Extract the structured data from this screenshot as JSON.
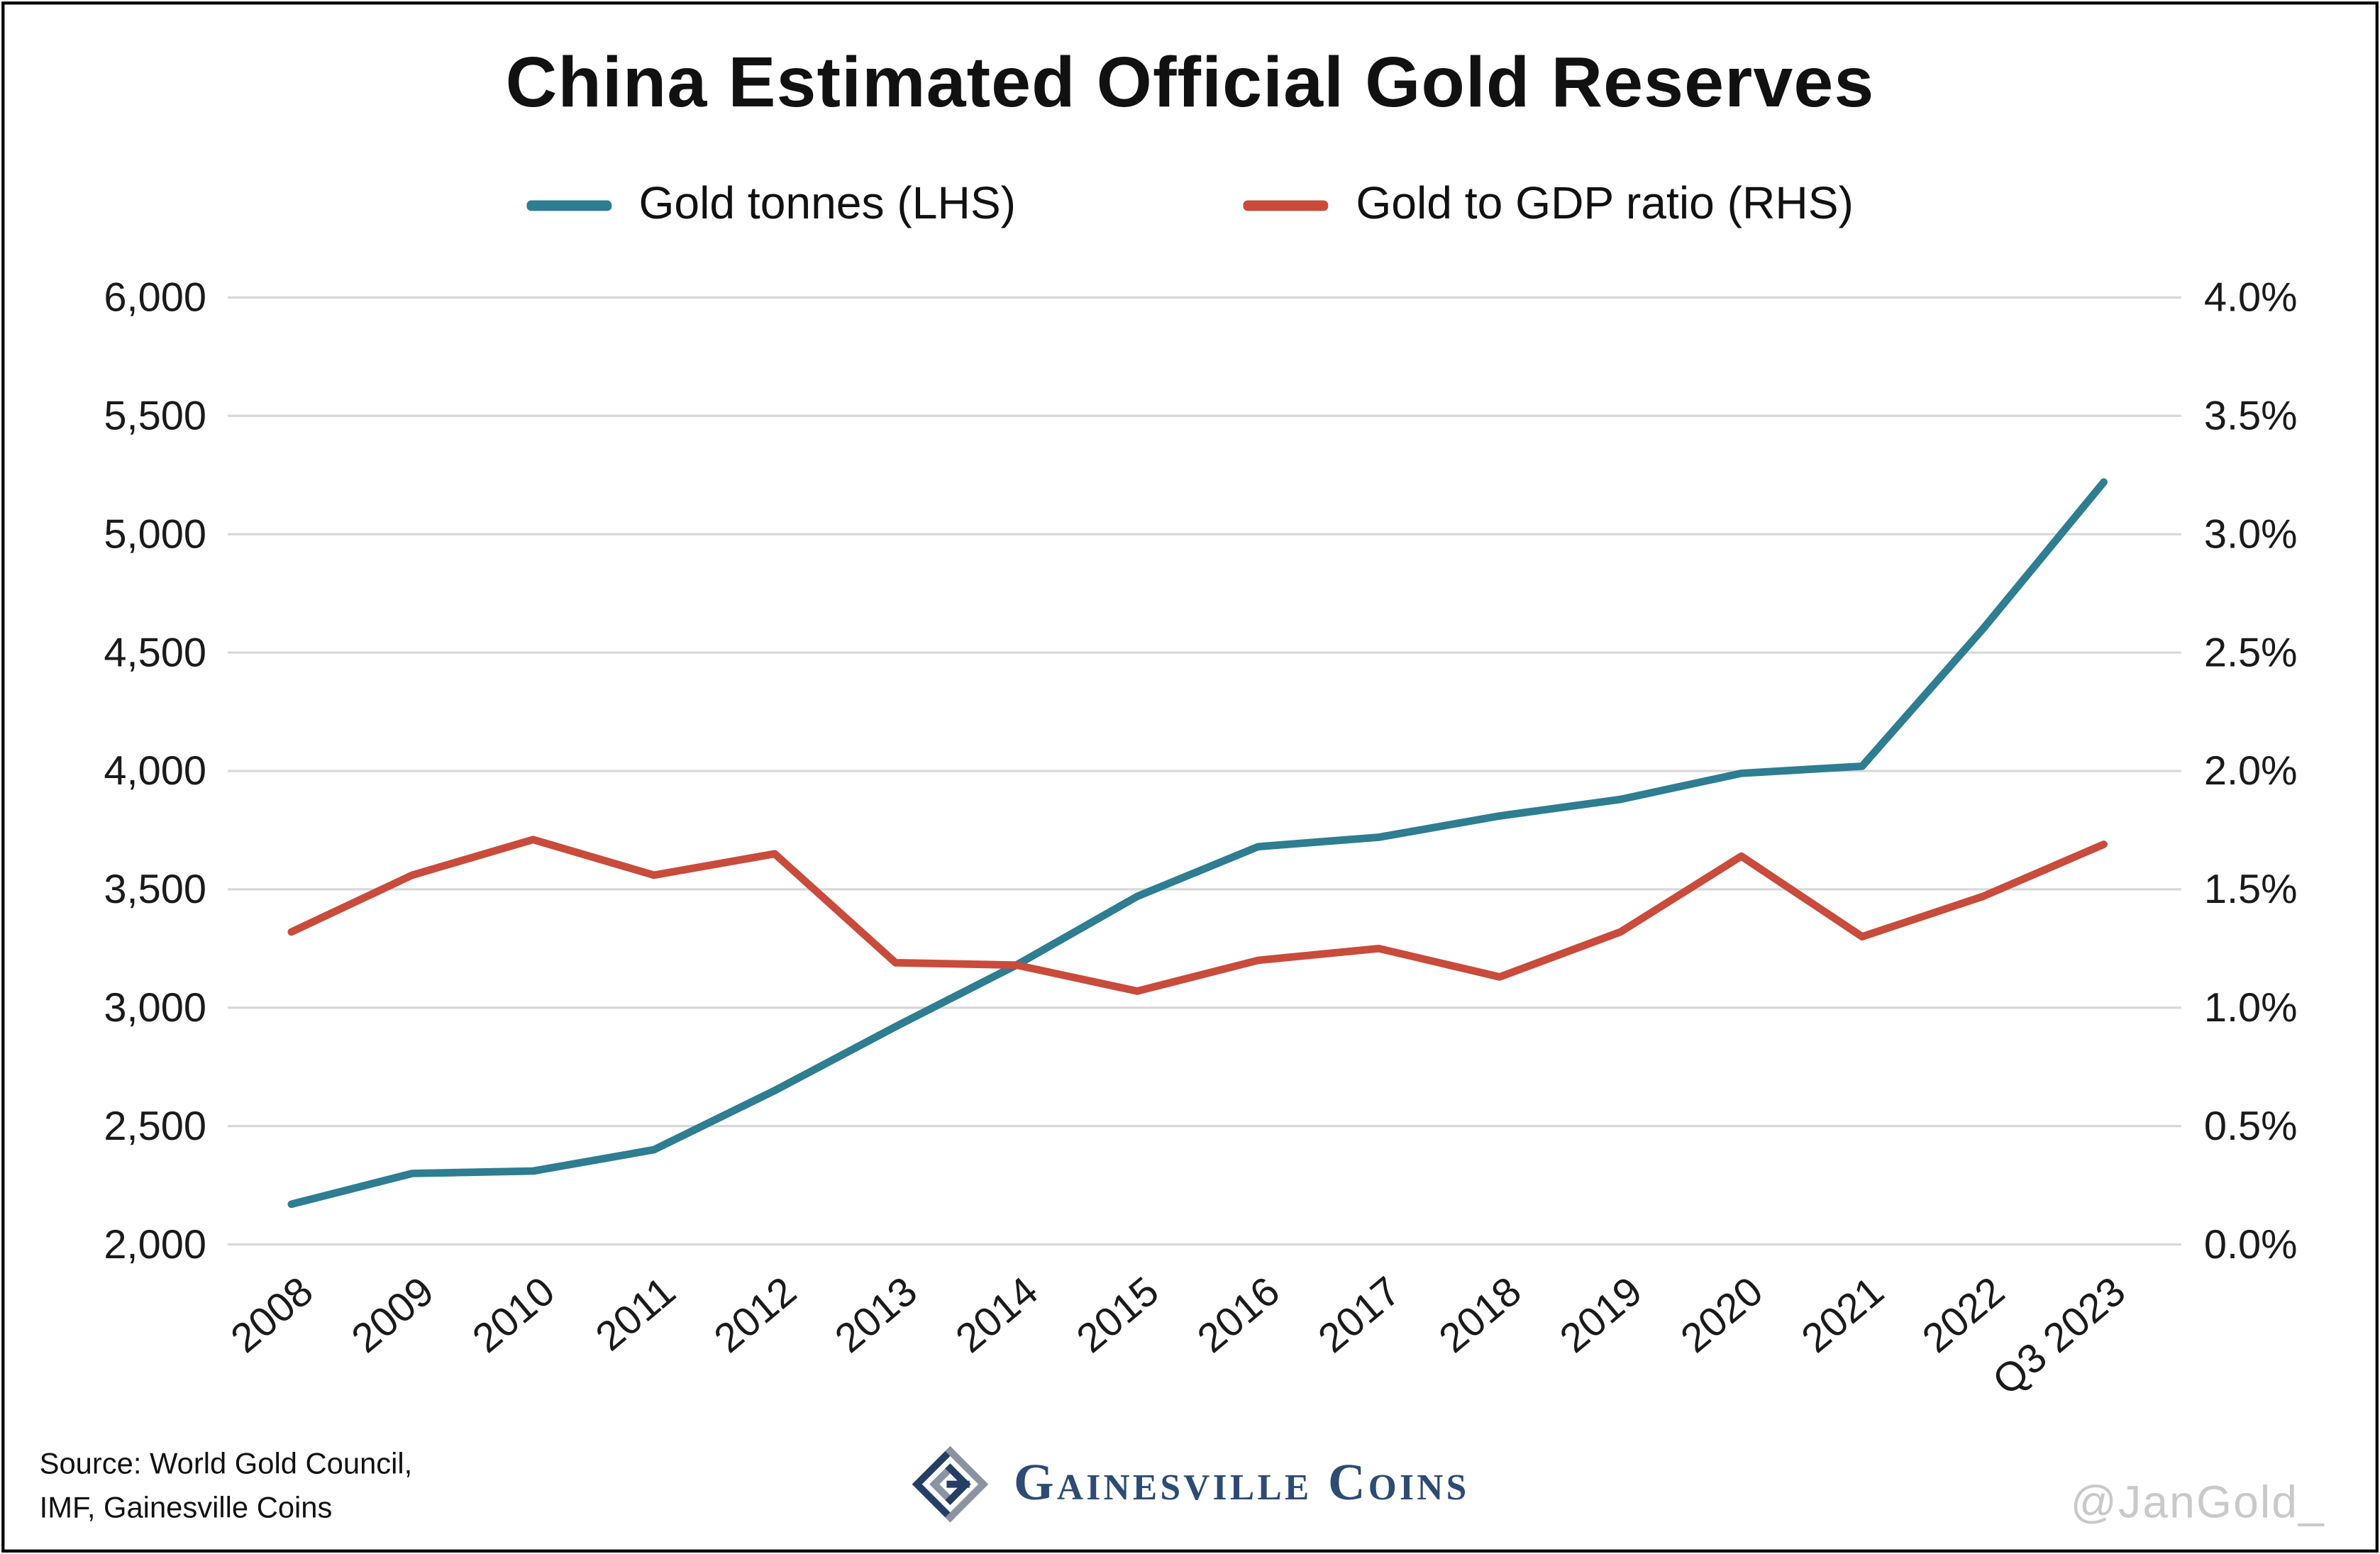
{
  "title": "China Estimated Official Gold Reserves",
  "legend": [
    {
      "label": "Gold tonnes (LHS)",
      "color": "#2e7d91"
    },
    {
      "label": "Gold to GDP ratio (RHS)",
      "color": "#c94b3b"
    }
  ],
  "chart_data": {
    "type": "line",
    "title": "China Estimated Official Gold Reserves",
    "categories": [
      "2008",
      "2009",
      "2010",
      "2011",
      "2012",
      "2013",
      "2014",
      "2015",
      "2016",
      "2017",
      "2018",
      "2019",
      "2020",
      "2021",
      "2022",
      "Q3 2023"
    ],
    "series": [
      {
        "name": "Gold tonnes (LHS)",
        "axis": "left",
        "color": "#2e7d91",
        "values": [
          2170,
          2300,
          2310,
          2400,
          2650,
          2920,
          3180,
          3470,
          3680,
          3720,
          3810,
          3880,
          3990,
          4020,
          4600,
          5220
        ]
      },
      {
        "name": "Gold to GDP ratio (RHS)",
        "axis": "right",
        "color": "#c94b3b",
        "values": [
          1.32,
          1.56,
          1.71,
          1.56,
          1.65,
          1.19,
          1.18,
          1.07,
          1.2,
          1.25,
          1.13,
          1.32,
          1.64,
          1.3,
          1.47,
          1.69
        ]
      }
    ],
    "left_axis": {
      "min": 2000,
      "max": 6000,
      "step": 500,
      "tick_labels": [
        "2,000",
        "2,500",
        "3,000",
        "3,500",
        "4,000",
        "4,500",
        "5,000",
        "5,500",
        "6,000"
      ]
    },
    "right_axis": {
      "min": 0,
      "max": 4,
      "step": 0.5,
      "tick_labels": [
        "0.0%",
        "0.5%",
        "1.0%",
        "1.5%",
        "2.0%",
        "2.5%",
        "3.0%",
        "3.5%",
        "4.0%"
      ]
    },
    "grid": true,
    "gridline_color": "#d8d8d8",
    "legend_position": "top"
  },
  "footer": {
    "source_line1": "Source: World Gold Council,",
    "source_line2": "IMF, Gainesville Coins",
    "brand": "Gainesville Coins",
    "watermark": "@JanGold_"
  }
}
